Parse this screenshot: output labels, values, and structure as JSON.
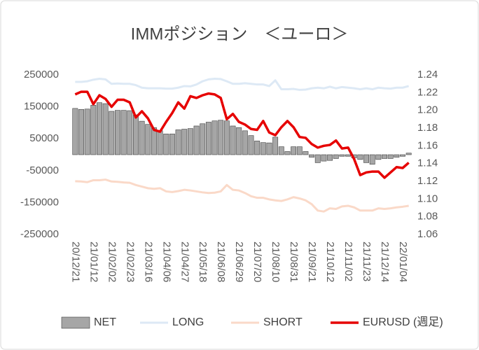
{
  "chart_data": {
    "type": "combo",
    "title": "IMMポジション　＜ユーロ＞",
    "categories": [
      "20/12/21",
      null,
      null,
      "21/01/12",
      null,
      null,
      "21/02/02",
      null,
      null,
      "21/02/23",
      null,
      null,
      "21/03/16",
      null,
      null,
      "21/04/06",
      null,
      null,
      "21/04/27",
      null,
      null,
      "21/05/18",
      null,
      null,
      "21/06/08",
      null,
      null,
      "21/06/29",
      null,
      null,
      "21/07/20",
      null,
      null,
      "21/08/10",
      null,
      null,
      "21/08/31",
      null,
      null,
      "21/09/21",
      null,
      null,
      "21/10/12",
      null,
      null,
      "21/11/02",
      null,
      null,
      "21/11/23",
      null,
      null,
      "21/12/14",
      null,
      null,
      "22/01/04",
      null
    ],
    "ylim": [
      -250000,
      250000
    ],
    "yticks": [
      -250000,
      -150000,
      -50000,
      50000,
      150000,
      250000
    ],
    "y2lim": [
      1.06,
      1.24
    ],
    "y2ticks": [
      1.06,
      1.08,
      {
        "value": 1.1,
        "label": "1.10"
      },
      1.12,
      1.14,
      1.16,
      1.18,
      {
        "value": 1.2,
        "label": "1.20"
      },
      1.22,
      1.24
    ],
    "grid": false,
    "legend": "bottom",
    "series": [
      {
        "name": "NET",
        "type": "bar",
        "color": "#a6a6a6",
        "values": [
          145000,
          142000,
          143000,
          155000,
          163000,
          160000,
          136000,
          139000,
          139000,
          138000,
          125000,
          105000,
          95000,
          85000,
          75000,
          65000,
          65000,
          78000,
          80000,
          82000,
          90000,
          97000,
          102000,
          106000,
          108000,
          106000,
          90000,
          85000,
          75000,
          60000,
          43000,
          38000,
          37000,
          55000,
          25000,
          10000,
          25000,
          25000,
          10000,
          -8000,
          -25000,
          -20000,
          -18000,
          -12000,
          -5000,
          -5000,
          -10000,
          -15000,
          -25000,
          -30000,
          -15000,
          -12000,
          -12000,
          -8000,
          -5000,
          5000
        ]
      },
      {
        "name": "LONG",
        "type": "line",
        "color": "#dde9f5",
        "values": [
          228000,
          228000,
          230000,
          235000,
          238000,
          236000,
          222000,
          223000,
          222000,
          222000,
          218000,
          210000,
          208000,
          208000,
          208000,
          207000,
          207000,
          210000,
          215000,
          214000,
          220000,
          230000,
          236000,
          238000,
          237000,
          230000,
          222000,
          222000,
          224000,
          222000,
          220000,
          220000,
          215000,
          233000,
          205000,
          205000,
          206000,
          203000,
          204000,
          208000,
          210000,
          208000,
          213000,
          208000,
          212000,
          210000,
          208000,
          205000,
          208000,
          205000,
          210000,
          208000,
          207000,
          210000,
          210000,
          215000
        ]
      },
      {
        "name": "SHORT",
        "type": "line",
        "color": "#fad9c8",
        "values": [
          -83000,
          -84000,
          -86000,
          -80000,
          -80000,
          -78000,
          -84000,
          -85000,
          -87000,
          -88000,
          -95000,
          -100000,
          -105000,
          -107000,
          -105000,
          -115000,
          -117000,
          -114000,
          -110000,
          -112000,
          -115000,
          -118000,
          -120000,
          -119000,
          -115000,
          -95000,
          -110000,
          -112000,
          -120000,
          -130000,
          -135000,
          -135000,
          -140000,
          -143000,
          -145000,
          -140000,
          -133000,
          -137000,
          -143000,
          -155000,
          -175000,
          -178000,
          -168000,
          -170000,
          -162000,
          -160000,
          -165000,
          -175000,
          -175000,
          -175000,
          -168000,
          -170000,
          -168000,
          -165000,
          -163000,
          -160000
        ]
      },
      {
        "name": "EURUSD (週足)",
        "type": "line",
        "axis": "y2",
        "color": "#e60000",
        "values": [
          1.218,
          1.221,
          1.221,
          1.207,
          1.217,
          1.213,
          1.204,
          1.212,
          1.212,
          1.209,
          1.192,
          1.199,
          1.191,
          1.178,
          1.176,
          1.187,
          1.197,
          1.209,
          1.202,
          1.216,
          1.214,
          1.217,
          1.219,
          1.218,
          1.214,
          1.19,
          1.196,
          1.187,
          1.184,
          1.179,
          1.178,
          1.188,
          1.175,
          1.172,
          1.181,
          1.188,
          1.181,
          1.17,
          1.169,
          1.162,
          1.158,
          1.16,
          1.161,
          1.166,
          1.157,
          1.158,
          1.145,
          1.127,
          1.13,
          1.131,
          1.131,
          1.124,
          1.13,
          1.136,
          1.135,
          1.141
        ]
      }
    ]
  }
}
